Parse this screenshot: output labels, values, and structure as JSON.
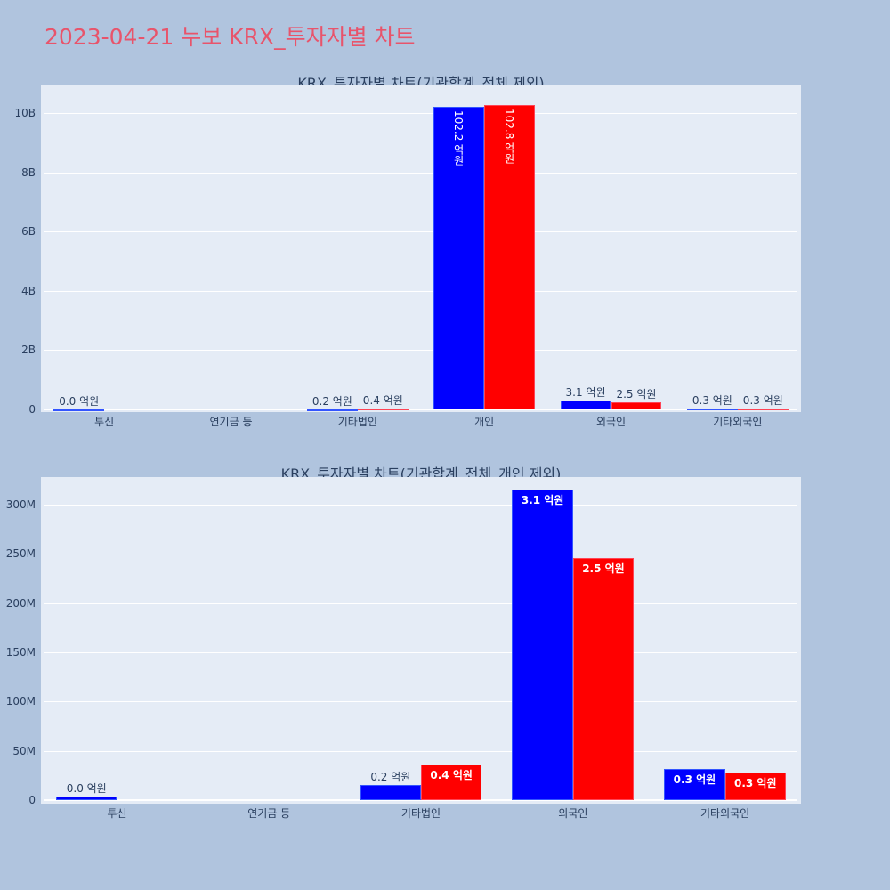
{
  "title": "2023-04-21 누보 KRX_투자자별 차트",
  "colors": {
    "buy": "#0000ff",
    "sell": "#ff0000",
    "title": "#e8546b",
    "background": "#b0c4de",
    "plot_bg": "#e5ecf6"
  },
  "chart_data": [
    {
      "type": "bar",
      "title": "KRX_투자자별 차트(기관합계_전체 제외)",
      "categories": [
        "투신",
        "연기금 등",
        "기타법인",
        "개인",
        "외국인",
        "기타외국인"
      ],
      "series": [
        {
          "name": "blue",
          "color": "#0000ff",
          "values": [
            3500000,
            0,
            15000000,
            10220000000,
            315000000,
            32000000
          ],
          "labels": [
            "0.0 억원",
            "",
            "0.2 억원",
            "102.2 억원",
            "3.1 억원",
            "0.3 억원"
          ]
        },
        {
          "name": "red",
          "color": "#ff0000",
          "values": [
            0,
            0,
            36000000,
            10280000000,
            246000000,
            28000000
          ],
          "labels": [
            "",
            "",
            "0.4 억원",
            "102.8 억원",
            "2.5 억원",
            "0.3 억원"
          ]
        }
      ],
      "yticks": [
        "0",
        "2B",
        "4B",
        "6B",
        "8B",
        "10B"
      ],
      "ylim": [
        0,
        11000000000
      ],
      "xlabel": "",
      "ylabel": "",
      "grid": true,
      "legend": "none"
    },
    {
      "type": "bar",
      "title": "KRX_투자자별 차트(기관합계_전체_개인 제외)",
      "categories": [
        "투신",
        "연기금 등",
        "기타법인",
        "외국인",
        "기타외국인"
      ],
      "series": [
        {
          "name": "blue",
          "color": "#0000ff",
          "values": [
            3500000,
            0,
            15000000,
            315000000,
            32000000
          ],
          "labels": [
            "0.0 억원",
            "",
            "0.2 억원",
            "3.1 억원",
            "0.3 억원"
          ]
        },
        {
          "name": "red",
          "color": "#ff0000",
          "values": [
            0,
            0,
            36000000,
            246000000,
            28000000
          ],
          "labels": [
            "",
            "",
            "0.4 억원",
            "2.5 억원",
            "0.3 억원"
          ]
        }
      ],
      "yticks": [
        "0",
        "50M",
        "100M",
        "150M",
        "200M",
        "250M",
        "300M"
      ],
      "ylim": [
        0,
        332000000
      ],
      "xlabel": "",
      "ylabel": "",
      "grid": true,
      "legend": "none"
    }
  ]
}
